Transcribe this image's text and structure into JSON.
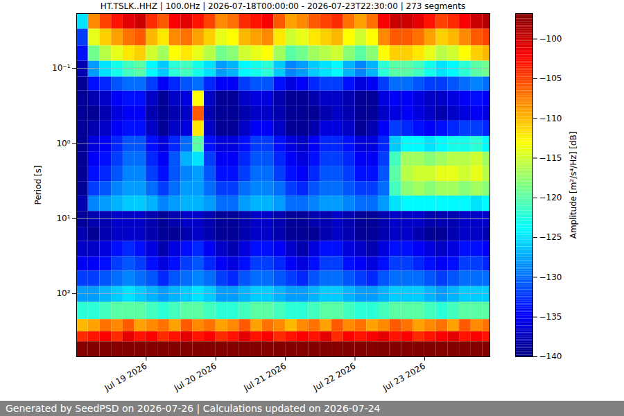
{
  "chart_data": {
    "type": "heatmap",
    "title": "HT.TSLK..HHZ | 100.0Hz | 2026-07-18T00:00:00 - 2026-07-23T22:30:00 | 273 segments",
    "ylabel": "Period [s]",
    "footer": "Generated by SeedPSD on 2026-07-26 | Calculations updated on 2026-07-24",
    "log": "y",
    "grid": "y",
    "color": "jet",
    "xlim": [
      "2026-07-18T00:00",
      "2026-07-23T22:30"
    ],
    "xticks": [
      {
        "value": "2026-07-19",
        "label": "Jul 19 2026"
      },
      {
        "value": "2026-07-20",
        "label": "Jul 20 2026"
      },
      {
        "value": "2026-07-21",
        "label": "Jul 21 2026"
      },
      {
        "value": "2026-07-22",
        "label": "Jul 22 2026"
      },
      {
        "value": "2026-07-23",
        "label": "Jul 23 2026"
      }
    ],
    "ylim": [
      0.0186,
      690
    ],
    "yticks": [
      {
        "value": 0.1,
        "label": "10⁻¹"
      },
      {
        "value": 1,
        "label": "10⁰"
      },
      {
        "value": 10,
        "label": "10¹"
      },
      {
        "value": 100,
        "label": "10²"
      }
    ],
    "x_bins": [
      "2026-07-18T00:00",
      "2026-07-18T04:00",
      "2026-07-18T08:00",
      "2026-07-18T12:00",
      "2026-07-18T16:00",
      "2026-07-18T20:00",
      "2026-07-19T00:00",
      "2026-07-19T04:00",
      "2026-07-19T08:00",
      "2026-07-19T12:00",
      "2026-07-19T16:00",
      "2026-07-19T20:00",
      "2026-07-20T00:00",
      "2026-07-20T04:00",
      "2026-07-20T08:00",
      "2026-07-20T12:00",
      "2026-07-20T16:00",
      "2026-07-20T20:00",
      "2026-07-21T00:00",
      "2026-07-21T04:00",
      "2026-07-21T08:00",
      "2026-07-21T12:00",
      "2026-07-21T16:00",
      "2026-07-21T20:00",
      "2026-07-22T00:00",
      "2026-07-22T04:00",
      "2026-07-22T08:00",
      "2026-07-22T12:00",
      "2026-07-22T16:00",
      "2026-07-22T20:00",
      "2026-07-23T00:00",
      "2026-07-23T04:00",
      "2026-07-23T08:00",
      "2026-07-23T12:00",
      "2026-07-23T16:00",
      "2026-07-23T20:00",
      "2026-07-23T22:30"
    ],
    "y_bins": [
      0.0186,
      0.03,
      0.05,
      0.08,
      0.13,
      0.2,
      0.32,
      0.5,
      0.8,
      1.3,
      2,
      3.2,
      5,
      8,
      13,
      20,
      32,
      50,
      80,
      130,
      220,
      320,
      435,
      690
    ],
    "values": [
      [
        -125,
        -108,
        -105,
        -103,
        -101,
        -100,
        -104,
        -106,
        -102,
        -101,
        -103,
        -105,
        -108,
        -107,
        -104,
        -103,
        -102,
        -106,
        -109,
        -108,
        -106,
        -105,
        -104,
        -107,
        -109,
        -107,
        -102,
        -100,
        -100,
        -101,
        -103,
        -105,
        -104,
        -102,
        -100,
        -99
      ],
      [
        -132,
        -114,
        -111,
        -109,
        -107,
        -106,
        -110,
        -112,
        -108,
        -107,
        -109,
        -111,
        -114,
        -113,
        -110,
        -109,
        -108,
        -112,
        -115,
        -114,
        -112,
        -111,
        -110,
        -113,
        -115,
        -113,
        -108,
        -106,
        -106,
        -107,
        -109,
        -111,
        -110,
        -108,
        -106,
        -105
      ],
      [
        -134,
        -119,
        -116,
        -114,
        -112,
        -111,
        -115,
        -117,
        -113,
        -112,
        -114,
        -116,
        -119,
        -118,
        -115,
        -114,
        -113,
        -117,
        -120,
        -119,
        -117,
        -116,
        -115,
        -118,
        -120,
        -118,
        -113,
        -111,
        -111,
        -112,
        -114,
        -116,
        -115,
        -113,
        -111,
        -110
      ],
      [
        -138,
        -128,
        -125,
        -123,
        -121,
        -120,
        -124,
        -126,
        -122,
        -121,
        -123,
        -125,
        -128,
        -127,
        -124,
        -123,
        -122,
        -126,
        -129,
        -128,
        -126,
        -125,
        -124,
        -127,
        -129,
        -127,
        -122,
        -120,
        -120,
        -121,
        -123,
        -125,
        -124,
        -122,
        -120,
        -119
      ],
      [
        -139,
        -134,
        -133,
        -131,
        -130,
        -130,
        -132,
        -135,
        -133,
        -131,
        -130,
        -133,
        -135,
        -135,
        -132,
        -131,
        -131,
        -134,
        -136,
        -135,
        -133,
        -132,
        -132,
        -134,
        -136,
        -135,
        -132,
        -130,
        -130,
        -131,
        -132,
        -132,
        -131,
        -130,
        -129,
        -130
      ],
      [
        -139,
        -138,
        -137,
        -135,
        -134,
        -134,
        -137,
        -139,
        -137,
        -136,
        -113,
        -137,
        -139,
        -139,
        -137,
        -136,
        -136,
        -138,
        -139,
        -139,
        -138,
        -137,
        -137,
        -138,
        -139,
        -139,
        -136,
        -135,
        -135,
        -136,
        -137,
        -137,
        -136,
        -135,
        -134,
        -135
      ],
      [
        -139,
        -139,
        -138,
        -136,
        -135,
        -135,
        -138,
        -139,
        -138,
        -137,
        -106,
        -138,
        -139,
        -139,
        -138,
        -137,
        -137,
        -138,
        -139,
        -139,
        -139,
        -138,
        -137,
        -138,
        -139,
        -139,
        -137,
        -136,
        -135,
        -136,
        -137,
        -138,
        -137,
        -136,
        -135,
        -136
      ],
      [
        -139,
        -138,
        -137,
        -135,
        -134,
        -134,
        -137,
        -139,
        -137,
        -136,
        -112,
        -137,
        -139,
        -139,
        -137,
        -135,
        -135,
        -137,
        -139,
        -139,
        -138,
        -136,
        -136,
        -137,
        -139,
        -138,
        -135,
        -132,
        -133,
        -134,
        -135,
        -134,
        -133,
        -132,
        -132,
        -133
      ],
      [
        -139,
        -136,
        -135,
        -133,
        -131,
        -131,
        -134,
        -136,
        -133,
        -130,
        -120,
        -134,
        -136,
        -136,
        -134,
        -132,
        -132,
        -134,
        -136,
        -137,
        -135,
        -133,
        -133,
        -134,
        -136,
        -136,
        -133,
        -126,
        -124,
        -124,
        -125,
        -124,
        -123,
        -123,
        -122,
        -124
      ],
      [
        -139,
        -135,
        -134,
        -132,
        -130,
        -130,
        -133,
        -135,
        -131,
        -127,
        -125,
        -132,
        -135,
        -135,
        -133,
        -131,
        -131,
        -133,
        -135,
        -136,
        -134,
        -132,
        -132,
        -133,
        -135,
        -135,
        -132,
        -121,
        -117,
        -117,
        -118,
        -117,
        -116,
        -116,
        -115,
        -117
      ],
      [
        -139,
        -134,
        -133,
        -131,
        -129,
        -129,
        -132,
        -134,
        -131,
        -129,
        -128,
        -131,
        -134,
        -134,
        -132,
        -130,
        -130,
        -132,
        -134,
        -135,
        -133,
        -131,
        -131,
        -132,
        -134,
        -134,
        -131,
        -120,
        -116,
        -115,
        -115,
        -114,
        -114,
        -115,
        -114,
        -116
      ],
      [
        -139,
        -132,
        -131,
        -129,
        -128,
        -128,
        -130,
        -132,
        -130,
        -128,
        -128,
        -130,
        -132,
        -132,
        -130,
        -129,
        -129,
        -130,
        -132,
        -133,
        -131,
        -130,
        -130,
        -131,
        -132,
        -132,
        -130,
        -121,
        -118,
        -117,
        -118,
        -117,
        -117,
        -118,
        -117,
        -118
      ],
      [
        -138,
        -129,
        -128,
        -127,
        -126,
        -126,
        -127,
        -129,
        -128,
        -127,
        -127,
        -128,
        -130,
        -130,
        -128,
        -127,
        -127,
        -128,
        -130,
        -130,
        -129,
        -128,
        -128,
        -129,
        -130,
        -130,
        -128,
        -125,
        -124,
        -124,
        -124,
        -124,
        -124,
        -124,
        -125,
        -124
      ],
      [
        -139,
        -138,
        -138,
        -137,
        -137,
        -137,
        -138,
        -139,
        -138,
        -137,
        -137,
        -138,
        -139,
        -139,
        -138,
        -137,
        -137,
        -138,
        -139,
        -139,
        -138,
        -138,
        -137,
        -138,
        -139,
        -139,
        -138,
        -137,
        -137,
        -137,
        -138,
        -138,
        -138,
        -137,
        -137,
        -137
      ],
      [
        -138,
        -139,
        -138,
        -137,
        -137,
        -137,
        -138,
        -139,
        -139,
        -138,
        -137,
        -138,
        -139,
        -139,
        -138,
        -137,
        -137,
        -138,
        -139,
        -139,
        -139,
        -138,
        -137,
        -138,
        -139,
        -139,
        -138,
        -137,
        -137,
        -138,
        -139,
        -139,
        -138,
        -137,
        -137,
        -138
      ],
      [
        -137,
        -137,
        -136,
        -134,
        -133,
        -134,
        -136,
        -138,
        -136,
        -134,
        -133,
        -135,
        -137,
        -138,
        -136,
        -134,
        -134,
        -135,
        -137,
        -138,
        -136,
        -134,
        -134,
        -136,
        -137,
        -138,
        -136,
        -134,
        -134,
        -135,
        -136,
        -137,
        -136,
        -134,
        -134,
        -135
      ],
      [
        -135,
        -135,
        -134,
        -132,
        -131,
        -132,
        -134,
        -136,
        -134,
        -132,
        -131,
        -133,
        -135,
        -136,
        -134,
        -132,
        -132,
        -133,
        -135,
        -136,
        -134,
        -132,
        -132,
        -134,
        -135,
        -136,
        -134,
        -132,
        -132,
        -133,
        -134,
        -135,
        -134,
        -132,
        -132,
        -133
      ],
      [
        -132,
        -132,
        -131,
        -130,
        -129,
        -130,
        -131,
        -133,
        -131,
        -130,
        -129,
        -130,
        -132,
        -133,
        -131,
        -130,
        -130,
        -131,
        -132,
        -133,
        -131,
        -130,
        -130,
        -131,
        -132,
        -133,
        -131,
        -130,
        -130,
        -130,
        -131,
        -132,
        -131,
        -130,
        -130,
        -130
      ],
      [
        -128,
        -128,
        -127,
        -126,
        -125,
        -126,
        -127,
        -128,
        -127,
        -126,
        -125,
        -126,
        -128,
        -128,
        -127,
        -126,
        -126,
        -127,
        -128,
        -128,
        -127,
        -126,
        -126,
        -127,
        -128,
        -128,
        -127,
        -126,
        -126,
        -126,
        -127,
        -128,
        -127,
        -126,
        -126,
        -126
      ],
      [
        -122,
        -122,
        -121,
        -120,
        -120,
        -120,
        -121,
        -122,
        -121,
        -120,
        -120,
        -121,
        -122,
        -122,
        -121,
        -120,
        -120,
        -121,
        -122,
        -122,
        -121,
        -120,
        -120,
        -121,
        -122,
        -122,
        -121,
        -120,
        -120,
        -120,
        -121,
        -122,
        -121,
        -120,
        -120,
        -120
      ],
      [
        -110,
        -109,
        -107,
        -108,
        -106,
        -109,
        -108,
        -107,
        -109,
        -106,
        -108,
        -107,
        -109,
        -108,
        -106,
        -109,
        -107,
        -108,
        -110,
        -108,
        -107,
        -109,
        -106,
        -108,
        -107,
        -109,
        -108,
        -106,
        -107,
        -109,
        -108,
        -107,
        -109,
        -106,
        -108,
        -107
      ],
      [
        -104,
        -103,
        -102,
        -104,
        -101,
        -103,
        -102,
        -104,
        -103,
        -101,
        -103,
        -102,
        -104,
        -103,
        -101,
        -103,
        -102,
        -104,
        -103,
        -102,
        -103,
        -101,
        -104,
        -102,
        -103,
        -102,
        -101,
        -103,
        -102,
        -104,
        -103,
        -102,
        -101,
        -103,
        -102,
        -103
      ],
      [
        -97,
        -97,
        -97,
        -97,
        -97,
        -97,
        -97,
        -97,
        -97,
        -97,
        -97,
        -97,
        -97,
        -97,
        -97,
        -97,
        -97,
        -97,
        -97,
        -97,
        -97,
        -97,
        -97,
        -97,
        -97,
        -97,
        -97,
        -97,
        -97,
        -97,
        -97,
        -97,
        -97,
        -97,
        -97,
        -97
      ]
    ],
    "colorbar": {
      "label": "Amplitude [m²/s⁴/Hz] [dB]",
      "range": [
        -140,
        -96.8
      ],
      "ticks": [
        {
          "value": -100,
          "label": "−100"
        },
        {
          "value": -105,
          "label": "−105"
        },
        {
          "value": -110,
          "label": "−110"
        },
        {
          "value": -115,
          "label": "−115"
        },
        {
          "value": -120,
          "label": "−120"
        },
        {
          "value": -125,
          "label": "−125"
        },
        {
          "value": -130,
          "label": "−130"
        },
        {
          "value": -135,
          "label": "−135"
        },
        {
          "value": -140,
          "label": "−140"
        }
      ]
    }
  }
}
